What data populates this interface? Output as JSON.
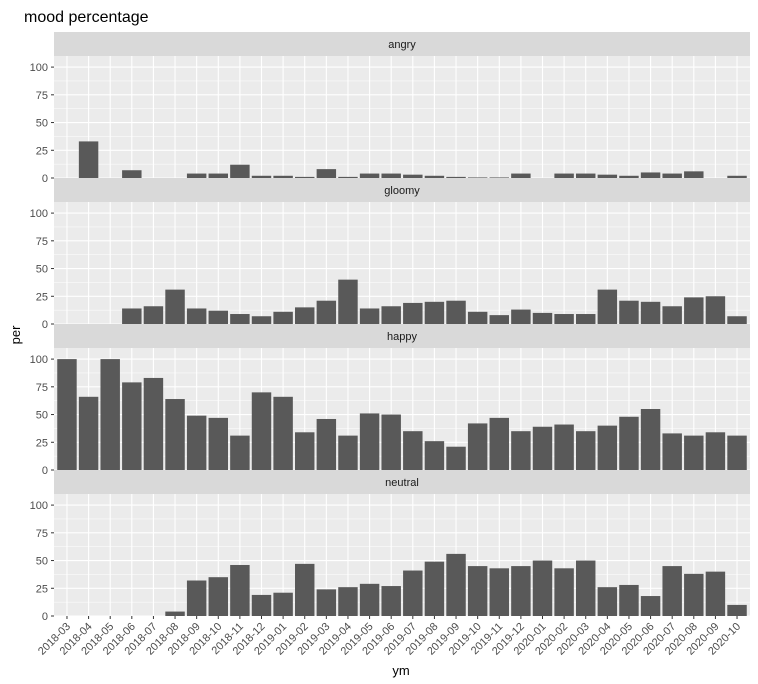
{
  "chart_data": {
    "type": "bar",
    "title": "mood percentage",
    "xlabel": "ym",
    "ylabel": "per",
    "ylim": [
      0,
      110
    ],
    "yticks": [
      0,
      25,
      50,
      75,
      100
    ],
    "categories": [
      "2018-03",
      "2018-04",
      "2018-05",
      "2018-06",
      "2018-07",
      "2018-08",
      "2018-09",
      "2018-10",
      "2018-11",
      "2018-12",
      "2019-01",
      "2019-02",
      "2019-03",
      "2019-04",
      "2019-05",
      "2019-06",
      "2019-07",
      "2019-08",
      "2019-09",
      "2019-10",
      "2019-11",
      "2019-12",
      "2020-01",
      "2020-02",
      "2020-03",
      "2020-04",
      "2020-05",
      "2020-06",
      "2020-07",
      "2020-08",
      "2020-09",
      "2020-10"
    ],
    "facets": [
      {
        "name": "angry",
        "values": [
          0,
          33,
          0,
          7,
          0,
          0,
          4,
          4,
          12,
          2,
          2,
          1,
          8,
          1,
          4,
          4,
          3,
          2,
          1,
          0.5,
          0.5,
          4,
          0,
          4,
          4,
          3,
          2,
          5,
          4,
          6,
          0,
          2
        ]
      },
      {
        "name": "gloomy",
        "values": [
          0,
          0,
          0,
          14,
          16,
          31,
          14,
          12,
          9,
          7,
          11,
          15,
          21,
          40,
          14,
          16,
          19,
          20,
          21,
          11,
          8,
          13,
          10,
          9,
          9,
          31,
          21,
          20,
          16,
          24,
          25,
          7
        ]
      },
      {
        "name": "happy",
        "values": [
          100,
          66,
          100,
          79,
          83,
          64,
          49,
          47,
          31,
          70,
          66,
          34,
          46,
          31,
          51,
          50,
          35,
          26,
          21,
          42,
          47,
          35,
          39,
          41,
          35,
          40,
          48,
          55,
          33,
          31,
          34,
          31
        ]
      },
      {
        "name": "neutral",
        "values": [
          0,
          0,
          0,
          0,
          0,
          4,
          32,
          35,
          46,
          19,
          21,
          47,
          24,
          26,
          29,
          27,
          41,
          49,
          56,
          45,
          43,
          45,
          50,
          43,
          50,
          26,
          28,
          18,
          45,
          38,
          40,
          10
        ]
      }
    ],
    "grid": true,
    "colors": {
      "bar": "#595959",
      "panel": "#ebebeb",
      "strip": "#d9d9d9",
      "grid": "#ffffff"
    }
  }
}
